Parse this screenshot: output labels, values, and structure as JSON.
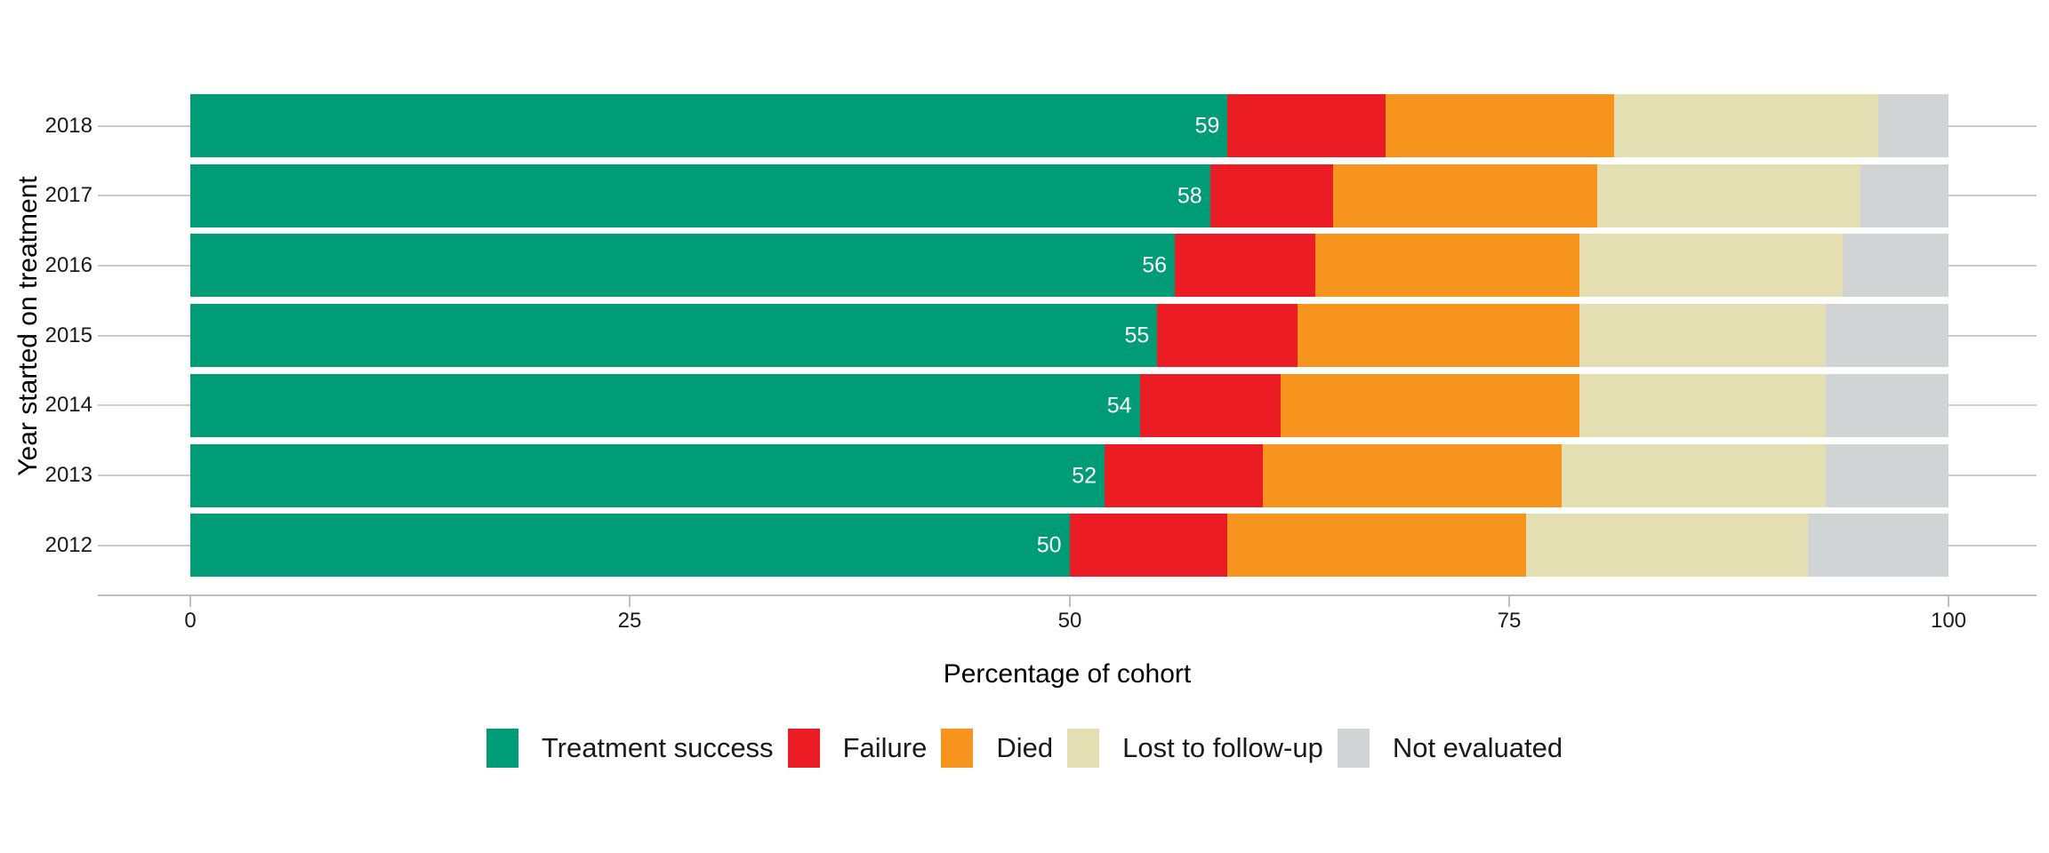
{
  "chart_data": {
    "type": "bar",
    "orientation": "horizontal",
    "stacked": true,
    "xlabel": "Percentage of cohort",
    "ylabel": "Year started on treatment",
    "categories": [
      "2018",
      "2017",
      "2016",
      "2015",
      "2014",
      "2013",
      "2012"
    ],
    "x_ticks": [
      0,
      25,
      50,
      75,
      100
    ],
    "xlim": [
      0,
      100
    ],
    "series": [
      {
        "name": "Treatment success",
        "color": "#009C77",
        "values": [
          59,
          58,
          56,
          55,
          54,
          52,
          50
        ],
        "data_labels_shown": true,
        "data_label_color": "#FFFFFF"
      },
      {
        "name": "Failure",
        "color": "#EC1C24",
        "values": [
          9,
          7,
          8,
          8,
          8,
          9,
          9
        ]
      },
      {
        "name": "Died",
        "color": "#F7941E",
        "values": [
          13,
          15,
          15,
          16,
          17,
          17,
          17
        ]
      },
      {
        "name": "Lost to follow-up",
        "color": "#E4DEB3",
        "values": [
          15,
          15,
          15,
          14,
          14,
          15,
          16
        ]
      },
      {
        "name": "Not evaluated",
        "color": "#D1D3D4",
        "values": [
          4,
          5,
          6,
          7,
          7,
          7,
          8
        ]
      }
    ],
    "legend_position": "bottom",
    "grid": "horizontal-major-lines",
    "grid_color": "#CBCBCB",
    "axis_color": "#BFBFBF",
    "text_color": "#1A1A1A",
    "background": "#FFFFFF"
  }
}
